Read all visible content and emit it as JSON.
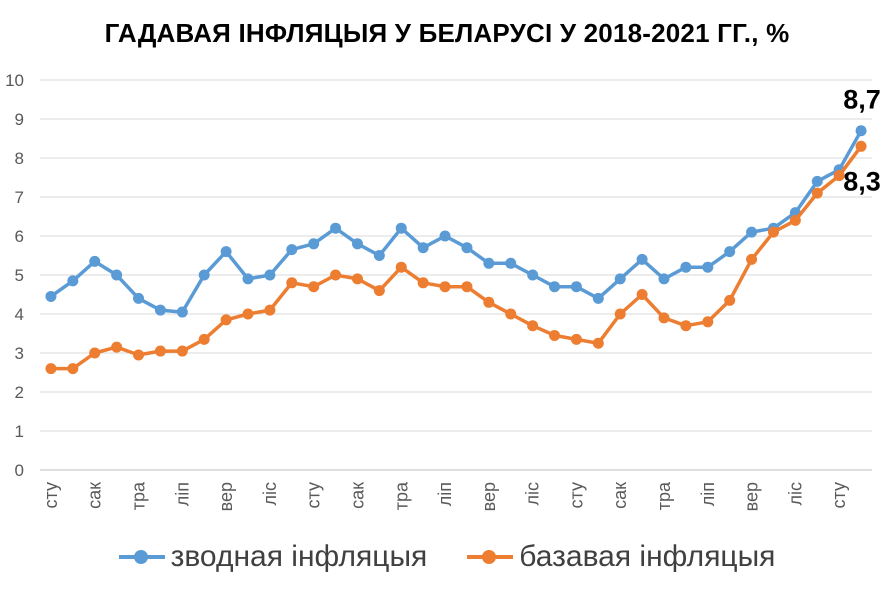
{
  "chart_data": {
    "type": "line",
    "title": "ГАДАВАЯ ІНФЛЯЦЫЯ У БЕЛАРУСІ У 2018-2021 ГГ., %",
    "ylim": [
      0,
      10
    ],
    "yticks": [
      "0",
      "1",
      "2",
      "3",
      "4",
      "5",
      "6",
      "7",
      "8",
      "9",
      "10"
    ],
    "grid": true,
    "legend_position": "bottom",
    "x_tick_labels": [
      "сту",
      "сак",
      "тра",
      "ліп",
      "вер",
      "ліс",
      "сту",
      "сак",
      "тра",
      "ліп",
      "вер",
      "ліс",
      "сту",
      "сак",
      "тра",
      "ліп",
      "вер",
      "ліс",
      "сту"
    ],
    "series": [
      {
        "name": "зводная інфляцыя",
        "color": "#5B9BD5",
        "values": [
          4.45,
          4.85,
          5.35,
          5.0,
          4.4,
          4.1,
          4.05,
          5.0,
          5.6,
          4.9,
          5.0,
          5.65,
          5.8,
          6.2,
          5.8,
          5.5,
          6.2,
          5.7,
          6.0,
          5.7,
          5.3,
          5.3,
          5.0,
          4.7,
          4.7,
          4.4,
          4.9,
          5.4,
          4.9,
          5.2,
          5.2,
          5.6,
          6.1,
          6.2,
          6.6,
          7.4,
          7.7,
          8.7
        ],
        "end_label": "8,7"
      },
      {
        "name": "базавая інфляцыя",
        "color": "#ED7D31",
        "values": [
          2.6,
          2.6,
          3.0,
          3.15,
          2.95,
          3.05,
          3.05,
          3.35,
          3.85,
          4.0,
          4.1,
          4.8,
          4.7,
          5.0,
          4.9,
          4.6,
          5.2,
          4.8,
          4.7,
          4.7,
          4.3,
          4.0,
          3.7,
          3.45,
          3.35,
          3.25,
          4.0,
          4.5,
          3.9,
          3.7,
          3.8,
          4.35,
          5.4,
          6.1,
          6.4,
          7.1,
          7.55,
          8.3
        ],
        "end_label": "8,3"
      }
    ]
  }
}
